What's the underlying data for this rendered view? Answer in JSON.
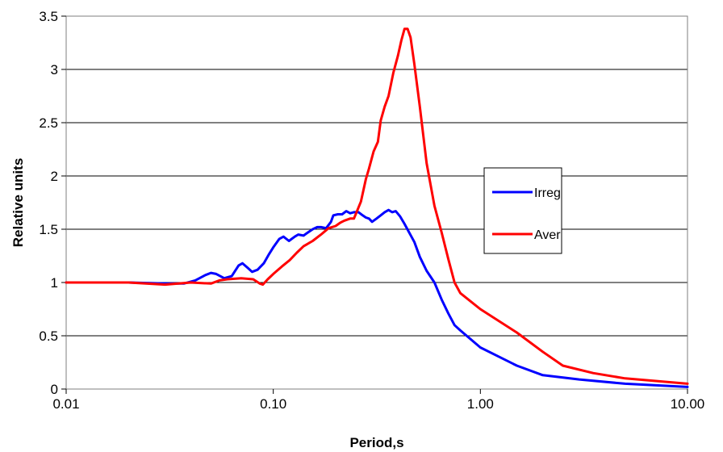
{
  "chart_data": {
    "type": "line",
    "x_scale": "log",
    "title": "",
    "xlabel": "Period,s",
    "ylabel": "Relative units",
    "xlim": [
      0.01,
      10
    ],
    "ylim": [
      0,
      3.5
    ],
    "grid": "horizontal",
    "legend_position": "right",
    "x_ticks": [
      {
        "value": 0.01,
        "label": "0.01"
      },
      {
        "value": 0.1,
        "label": "0.10"
      },
      {
        "value": 1,
        "label": "1.00"
      },
      {
        "value": 10,
        "label": "10.00"
      }
    ],
    "y_ticks": [
      {
        "value": 0,
        "label": "0"
      },
      {
        "value": 0.5,
        "label": "0.5"
      },
      {
        "value": 1,
        "label": "1"
      },
      {
        "value": 1.5,
        "label": "1.5"
      },
      {
        "value": 2,
        "label": "2"
      },
      {
        "value": 2.5,
        "label": "2.5"
      },
      {
        "value": 3,
        "label": "3"
      },
      {
        "value": 3.5,
        "label": "3.5"
      }
    ],
    "series": [
      {
        "name": "Irreg",
        "color": "#0000ff",
        "points": [
          [
            0.01,
            1.0
          ],
          [
            0.02,
            1.0
          ],
          [
            0.03,
            0.99
          ],
          [
            0.037,
            0.99
          ],
          [
            0.042,
            1.02
          ],
          [
            0.047,
            1.07
          ],
          [
            0.05,
            1.09
          ],
          [
            0.053,
            1.08
          ],
          [
            0.058,
            1.04
          ],
          [
            0.063,
            1.06
          ],
          [
            0.068,
            1.16
          ],
          [
            0.071,
            1.18
          ],
          [
            0.075,
            1.14
          ],
          [
            0.079,
            1.1
          ],
          [
            0.084,
            1.12
          ],
          [
            0.09,
            1.18
          ],
          [
            0.095,
            1.26
          ],
          [
            0.1,
            1.33
          ],
          [
            0.107,
            1.41
          ],
          [
            0.112,
            1.43
          ],
          [
            0.119,
            1.39
          ],
          [
            0.127,
            1.43
          ],
          [
            0.132,
            1.45
          ],
          [
            0.14,
            1.44
          ],
          [
            0.147,
            1.47
          ],
          [
            0.155,
            1.5
          ],
          [
            0.163,
            1.52
          ],
          [
            0.17,
            1.52
          ],
          [
            0.18,
            1.51
          ],
          [
            0.19,
            1.57
          ],
          [
            0.195,
            1.63
          ],
          [
            0.205,
            1.64
          ],
          [
            0.215,
            1.64
          ],
          [
            0.225,
            1.67
          ],
          [
            0.235,
            1.65
          ],
          [
            0.245,
            1.66
          ],
          [
            0.258,
            1.66
          ],
          [
            0.27,
            1.63
          ],
          [
            0.28,
            1.61
          ],
          [
            0.29,
            1.6
          ],
          [
            0.3,
            1.57
          ],
          [
            0.315,
            1.6
          ],
          [
            0.33,
            1.63
          ],
          [
            0.345,
            1.66
          ],
          [
            0.36,
            1.68
          ],
          [
            0.375,
            1.66
          ],
          [
            0.39,
            1.67
          ],
          [
            0.41,
            1.62
          ],
          [
            0.43,
            1.55
          ],
          [
            0.45,
            1.48
          ],
          [
            0.48,
            1.38
          ],
          [
            0.51,
            1.24
          ],
          [
            0.55,
            1.11
          ],
          [
            0.6,
            1.0
          ],
          [
            0.65,
            0.84
          ],
          [
            0.7,
            0.71
          ],
          [
            0.75,
            0.6
          ],
          [
            0.8,
            0.55
          ],
          [
            1.0,
            0.39
          ],
          [
            1.5,
            0.22
          ],
          [
            2.0,
            0.13
          ],
          [
            3.0,
            0.09
          ],
          [
            5.0,
            0.05
          ],
          [
            10.0,
            0.02
          ]
        ]
      },
      {
        "name": "Aver",
        "color": "#ff0000",
        "points": [
          [
            0.01,
            1.0
          ],
          [
            0.02,
            1.0
          ],
          [
            0.03,
            0.98
          ],
          [
            0.04,
            1.0
          ],
          [
            0.05,
            0.99
          ],
          [
            0.055,
            1.02
          ],
          [
            0.06,
            1.03
          ],
          [
            0.07,
            1.04
          ],
          [
            0.08,
            1.03
          ],
          [
            0.086,
            0.99
          ],
          [
            0.089,
            0.98
          ],
          [
            0.094,
            1.03
          ],
          [
            0.1,
            1.08
          ],
          [
            0.11,
            1.15
          ],
          [
            0.12,
            1.21
          ],
          [
            0.13,
            1.28
          ],
          [
            0.14,
            1.34
          ],
          [
            0.155,
            1.39
          ],
          [
            0.17,
            1.45
          ],
          [
            0.185,
            1.51
          ],
          [
            0.2,
            1.53
          ],
          [
            0.21,
            1.56
          ],
          [
            0.22,
            1.58
          ],
          [
            0.235,
            1.6
          ],
          [
            0.245,
            1.6
          ],
          [
            0.255,
            1.68
          ],
          [
            0.265,
            1.76
          ],
          [
            0.28,
            1.97
          ],
          [
            0.29,
            2.07
          ],
          [
            0.305,
            2.23
          ],
          [
            0.32,
            2.32
          ],
          [
            0.33,
            2.52
          ],
          [
            0.345,
            2.65
          ],
          [
            0.36,
            2.75
          ],
          [
            0.38,
            2.97
          ],
          [
            0.4,
            3.13
          ],
          [
            0.415,
            3.27
          ],
          [
            0.43,
            3.38
          ],
          [
            0.445,
            3.38
          ],
          [
            0.46,
            3.3
          ],
          [
            0.48,
            3.05
          ],
          [
            0.51,
            2.65
          ],
          [
            0.55,
            2.12
          ],
          [
            0.6,
            1.72
          ],
          [
            0.65,
            1.47
          ],
          [
            0.7,
            1.22
          ],
          [
            0.75,
            1.0
          ],
          [
            0.8,
            0.9
          ],
          [
            1.0,
            0.75
          ],
          [
            1.5,
            0.53
          ],
          [
            2.0,
            0.35
          ],
          [
            2.5,
            0.22
          ],
          [
            3.5,
            0.15
          ],
          [
            5.0,
            0.1
          ],
          [
            10.0,
            0.05
          ]
        ]
      }
    ]
  }
}
